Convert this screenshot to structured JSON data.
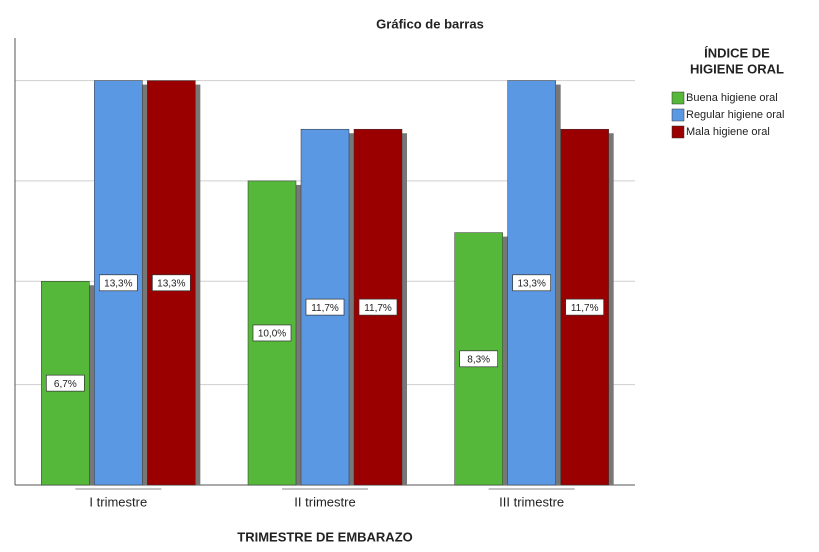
{
  "chart_data": {
    "type": "bar",
    "title": "Gráfico de barras",
    "x_label": "TRIMESTRE DE EMBARAZO",
    "legend_title": [
      "ÍNDICE DE",
      "HIGIENE ORAL"
    ],
    "categories": [
      "I trimestre",
      "II trimestre",
      "III trimestre"
    ],
    "series": [
      {
        "name": "Buena higiene oral",
        "color": "#55b83b",
        "values": [
          6.7,
          10.0,
          8.3
        ],
        "value_labels": [
          "6,7%",
          "10,0%",
          "8,3%"
        ]
      },
      {
        "name": "Regular higiene oral",
        "color": "#5a98e4",
        "values": [
          13.3,
          11.7,
          13.3
        ],
        "value_labels": [
          "13,3%",
          "11,7%",
          "13,3%"
        ]
      },
      {
        "name": "Mala higiene oral",
        "color": "#9b0000",
        "values": [
          13.3,
          11.7,
          11.7
        ],
        "value_labels": [
          "13,3%",
          "11,7%",
          "11,7%"
        ]
      }
    ],
    "ylim": [
      0,
      14.7
    ],
    "yticks": [
      3.3,
      6.7,
      10,
      13.3
    ],
    "grid": true,
    "legend": "right"
  }
}
